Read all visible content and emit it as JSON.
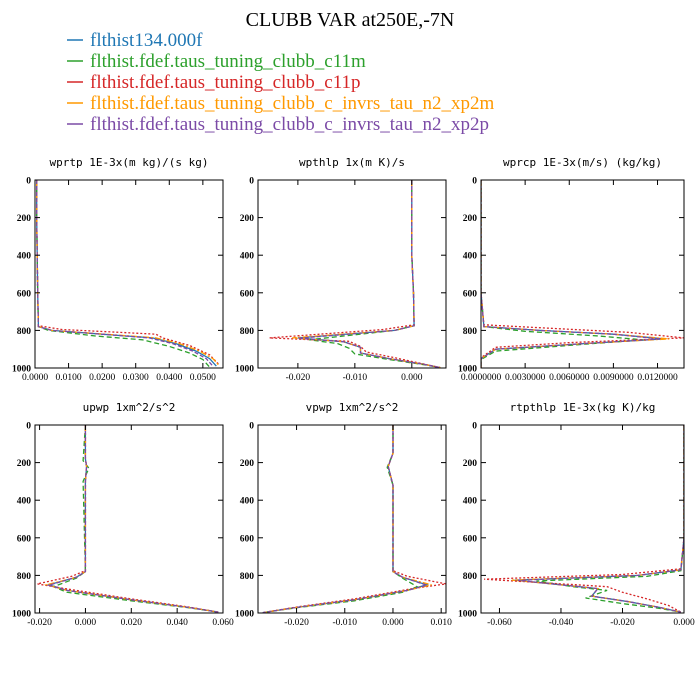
{
  "figure": {
    "title": "CLUBB VAR at250E,-7N"
  },
  "legend": [
    {
      "name": "flthist134.000f",
      "color": "#1f77b4"
    },
    {
      "name": "flthist.fdef.taus_tuning_clubb_c11m",
      "color": "#2ca02c"
    },
    {
      "name": "flthist.fdef.taus_tuning_clubb_c11p",
      "color": "#d62728"
    },
    {
      "name": "flthist.fdef.taus_tuning_clubb_c_invrs_tau_n2_xp2m",
      "color": "#ff9900"
    },
    {
      "name": "flthist.fdef.taus_tuning_clubb_c_invrs_tau_n2_xp2p",
      "color": "#7b4aa6"
    }
  ],
  "chart_data": [
    {
      "type": "line",
      "title": "wprtp  1E-3x(m kg)/(s kg)",
      "xlim": [
        0,
        0.056
      ],
      "ylim": [
        0,
        1000
      ],
      "y_inverted": true,
      "xticks": [
        0,
        0.01,
        0.02,
        0.03,
        0.04,
        0.05
      ],
      "xtick_labels": [
        "0.0000",
        "0.0100",
        "0.0200",
        "0.0300",
        "0.0400",
        "0.0500"
      ],
      "yticks": [
        0,
        200,
        400,
        600,
        800,
        1000
      ],
      "series": [
        {
          "name": "flthist134.000f",
          "x": [
            0.0005,
            0.0005,
            0.0008,
            0.001,
            0.005,
            0.02,
            0.035,
            0.042,
            0.048,
            0.052,
            0.054
          ],
          "y": [
            0,
            200,
            600,
            780,
            800,
            820,
            840,
            870,
            910,
            950,
            990
          ]
        },
        {
          "name": "flthist.fdef.taus_tuning_clubb_c11m",
          "x": [
            0.0005,
            0.0005,
            0.0008,
            0.001,
            0.004,
            0.018,
            0.032,
            0.04,
            0.046,
            0.05,
            0.052
          ],
          "y": [
            0,
            200,
            600,
            780,
            800,
            830,
            850,
            885,
            920,
            955,
            995
          ]
        },
        {
          "name": "flthist.fdef.taus_tuning_clubb_c11p",
          "x": [
            0.0005,
            0.0005,
            0.0008,
            0.001,
            0.008,
            0.025,
            0.036,
            0.038,
            0.046,
            0.052,
            0.055
          ],
          "y": [
            0,
            200,
            600,
            775,
            795,
            810,
            820,
            840,
            880,
            930,
            985
          ]
        },
        {
          "name": "flthist.fdef.taus_tuning_clubb_c_invrs_tau_n2_xp2m",
          "x": [
            0.0005,
            0.0005,
            0.0008,
            0.001,
            0.005,
            0.021,
            0.036,
            0.043,
            0.049,
            0.053,
            0.055
          ],
          "y": [
            0,
            200,
            600,
            780,
            800,
            820,
            840,
            870,
            910,
            950,
            990
          ]
        },
        {
          "name": "flthist.fdef.taus_tuning_clubb_c_invrs_tau_n2_xp2p",
          "x": [
            0.0005,
            0.0005,
            0.0008,
            0.001,
            0.005,
            0.02,
            0.034,
            0.041,
            0.047,
            0.051,
            0.053
          ],
          "y": [
            0,
            200,
            600,
            780,
            800,
            820,
            840,
            870,
            910,
            950,
            990
          ]
        }
      ]
    },
    {
      "type": "line",
      "title": "wpthlp  1x(m K)/s",
      "xlim": [
        -0.027,
        0.006
      ],
      "ylim": [
        0,
        1000
      ],
      "y_inverted": true,
      "xticks": [
        -0.02,
        -0.01,
        0.0
      ],
      "xtick_labels": [
        "-0.020",
        "-0.010",
        "0.000"
      ],
      "yticks": [
        0,
        200,
        400,
        600,
        800,
        1000
      ],
      "series": [
        {
          "name": "flthist134.000f",
          "x": [
            0.0,
            0.0,
            0.0003,
            0.0004,
            -0.003,
            -0.02,
            -0.012,
            -0.009,
            -0.009,
            -0.004,
            0.002,
            0.005
          ],
          "y": [
            0,
            400,
            600,
            775,
            800,
            840,
            860,
            890,
            920,
            950,
            980,
            998
          ]
        },
        {
          "name": "flthist.fdef.taus_tuning_clubb_c11m",
          "x": [
            0.0,
            0.0,
            0.0003,
            0.0004,
            -0.003,
            -0.018,
            -0.013,
            -0.011,
            -0.01,
            -0.004,
            0.002,
            0.005
          ],
          "y": [
            0,
            400,
            600,
            775,
            800,
            850,
            870,
            895,
            925,
            955,
            982,
            998
          ]
        },
        {
          "name": "flthist.fdef.taus_tuning_clubb_c11p",
          "x": [
            0.0,
            0.0,
            0.0003,
            0.0004,
            -0.005,
            -0.025,
            -0.011,
            -0.009,
            -0.008,
            -0.003,
            0.002,
            0.005
          ],
          "y": [
            0,
            400,
            600,
            770,
            795,
            840,
            858,
            885,
            915,
            945,
            978,
            998
          ]
        },
        {
          "name": "flthist.fdef.taus_tuning_clubb_c_invrs_tau_n2_xp2m",
          "x": [
            0.0,
            0.0,
            0.0003,
            0.0004,
            -0.003,
            -0.021,
            -0.012,
            -0.009,
            -0.009,
            -0.004,
            0.002,
            0.005
          ],
          "y": [
            0,
            400,
            600,
            775,
            800,
            840,
            860,
            890,
            920,
            950,
            980,
            998
          ]
        },
        {
          "name": "flthist.fdef.taus_tuning_clubb_c_invrs_tau_n2_xp2p",
          "x": [
            0.0,
            0.0,
            0.0003,
            0.0004,
            -0.003,
            -0.02,
            -0.012,
            -0.009,
            -0.009,
            -0.004,
            0.002,
            0.005
          ],
          "y": [
            0,
            400,
            600,
            775,
            800,
            842,
            860,
            890,
            920,
            950,
            980,
            998
          ]
        }
      ]
    },
    {
      "type": "line",
      "title": "wprcp  1E-3x(m/s) (kg/kg)",
      "xlim": [
        0,
        0.0138
      ],
      "ylim": [
        0,
        1000
      ],
      "y_inverted": true,
      "xticks": [
        0,
        0.003,
        0.006,
        0.009,
        0.012
      ],
      "xtick_labels": [
        "0.0000000",
        "0.0030000",
        "0.0060000",
        "0.0090000",
        "0.0120000"
      ],
      "yticks": [
        0,
        200,
        400,
        600,
        800,
        1000
      ],
      "series": [
        {
          "name": "flthist134.000f",
          "x": [
            0.0,
            0.0,
            0.0002,
            0.004,
            0.009,
            0.0125,
            0.007,
            0.001,
            0.0,
            0.0
          ],
          "y": [
            0,
            600,
            780,
            800,
            820,
            845,
            870,
            900,
            950,
            1000
          ]
        },
        {
          "name": "flthist.fdef.taus_tuning_clubb_c11m",
          "x": [
            0.0,
            0.0,
            0.0002,
            0.003,
            0.008,
            0.011,
            0.006,
            0.001,
            0.0,
            0.0
          ],
          "y": [
            0,
            600,
            780,
            805,
            830,
            850,
            880,
            910,
            955,
            1000
          ]
        },
        {
          "name": "flthist.fdef.taus_tuning_clubb_c11p",
          "x": [
            0.0,
            0.0,
            0.0002,
            0.005,
            0.01,
            0.0138,
            0.006,
            0.001,
            0.0,
            0.0
          ],
          "y": [
            0,
            600,
            770,
            790,
            810,
            840,
            865,
            890,
            945,
            1000
          ]
        },
        {
          "name": "flthist.fdef.taus_tuning_clubb_c_invrs_tau_n2_xp2m",
          "x": [
            0.0,
            0.0,
            0.0002,
            0.004,
            0.009,
            0.0128,
            0.007,
            0.001,
            0.0,
            0.0
          ],
          "y": [
            0,
            600,
            780,
            800,
            820,
            845,
            870,
            900,
            950,
            1000
          ]
        },
        {
          "name": "flthist.fdef.taus_tuning_clubb_c_invrs_tau_n2_xp2p",
          "x": [
            0.0,
            0.0,
            0.0002,
            0.004,
            0.009,
            0.0122,
            0.007,
            0.001,
            0.0,
            0.0
          ],
          "y": [
            0,
            600,
            780,
            800,
            820,
            846,
            870,
            900,
            950,
            1000
          ]
        }
      ]
    },
    {
      "type": "line",
      "title": "upwp  1xm^2/s^2",
      "xlim": [
        -0.022,
        0.06
      ],
      "ylim": [
        0,
        1000
      ],
      "y_inverted": true,
      "xticks": [
        -0.02,
        0.0,
        0.02,
        0.04,
        0.06
      ],
      "xtick_labels": [
        "-0.020",
        "0.000",
        "0.020",
        "0.040",
        "0.060"
      ],
      "yticks": [
        0,
        200,
        400,
        600,
        800,
        1000
      ],
      "series": [
        {
          "name": "flthist134.000f",
          "x": [
            0.0,
            0.0,
            0.0005,
            0.0,
            0.0,
            -0.004,
            -0.016,
            -0.008,
            0.02,
            0.045,
            0.058
          ],
          "y": [
            0,
            180,
            220,
            300,
            780,
            810,
            850,
            880,
            930,
            970,
            995
          ]
        },
        {
          "name": "flthist.fdef.taus_tuning_clubb_c11m",
          "x": [
            0.0,
            -0.001,
            0.0015,
            -0.001,
            0.0,
            -0.004,
            -0.014,
            -0.008,
            0.02,
            0.045,
            0.058
          ],
          "y": [
            0,
            190,
            230,
            300,
            780,
            815,
            860,
            890,
            935,
            972,
            995
          ]
        },
        {
          "name": "flthist.fdef.taus_tuning_clubb_c11p",
          "x": [
            0.0,
            0.0,
            0.0005,
            0.0,
            0.0,
            -0.006,
            -0.021,
            -0.009,
            0.02,
            0.045,
            0.058
          ],
          "y": [
            0,
            180,
            220,
            300,
            775,
            805,
            845,
            870,
            925,
            968,
            995
          ]
        },
        {
          "name": "flthist.fdef.taus_tuning_clubb_c_invrs_tau_n2_xp2m",
          "x": [
            0.0,
            0.0,
            0.0005,
            0.0,
            0.0,
            -0.004,
            -0.017,
            -0.008,
            0.02,
            0.045,
            0.058
          ],
          "y": [
            0,
            180,
            220,
            300,
            780,
            810,
            850,
            880,
            930,
            970,
            995
          ]
        },
        {
          "name": "flthist.fdef.taus_tuning_clubb_c_invrs_tau_n2_xp2p",
          "x": [
            0.0,
            0.0,
            0.0005,
            0.0,
            0.0,
            -0.004,
            -0.016,
            -0.008,
            0.02,
            0.045,
            0.058
          ],
          "y": [
            0,
            180,
            220,
            300,
            780,
            810,
            852,
            880,
            930,
            970,
            995
          ]
        }
      ]
    },
    {
      "type": "line",
      "title": "vpwp  1xm^2/s^2",
      "xlim": [
        -0.028,
        0.011
      ],
      "ylim": [
        0,
        1000
      ],
      "y_inverted": true,
      "xticks": [
        -0.02,
        -0.01,
        0.0,
        0.01
      ],
      "xtick_labels": [
        "-0.020",
        "-0.010",
        "0.000",
        "0.010"
      ],
      "yticks": [
        0,
        200,
        400,
        600,
        800,
        1000
      ],
      "series": [
        {
          "name": "flthist134.000f",
          "x": [
            0.0,
            0.0,
            -0.001,
            0.0,
            0.0,
            0.002,
            0.007,
            0.003,
            -0.008,
            -0.02,
            -0.027
          ],
          "y": [
            0,
            150,
            220,
            320,
            780,
            810,
            850,
            880,
            930,
            970,
            998
          ]
        },
        {
          "name": "flthist.fdef.taus_tuning_clubb_c11m",
          "x": [
            0.0,
            0.0,
            -0.0012,
            0.0,
            0.0,
            0.002,
            0.005,
            0.002,
            -0.008,
            -0.02,
            -0.027
          ],
          "y": [
            0,
            150,
            225,
            320,
            780,
            815,
            860,
            890,
            935,
            972,
            998
          ]
        },
        {
          "name": "flthist.fdef.taus_tuning_clubb_c11p",
          "x": [
            0.0,
            0.0,
            -0.001,
            0.0,
            0.0,
            0.003,
            0.011,
            0.004,
            -0.008,
            -0.02,
            -0.027
          ],
          "y": [
            0,
            150,
            220,
            320,
            775,
            805,
            845,
            870,
            925,
            968,
            998
          ]
        },
        {
          "name": "flthist.fdef.taus_tuning_clubb_c_invrs_tau_n2_xp2m",
          "x": [
            0.0,
            0.0,
            -0.001,
            0.0,
            0.0,
            0.002,
            0.008,
            0.003,
            -0.008,
            -0.02,
            -0.027
          ],
          "y": [
            0,
            150,
            220,
            320,
            780,
            810,
            850,
            880,
            930,
            970,
            998
          ]
        },
        {
          "name": "flthist.fdef.taus_tuning_clubb_c_invrs_tau_n2_xp2p",
          "x": [
            0.0,
            0.0,
            -0.001,
            0.0,
            0.0,
            0.002,
            0.007,
            0.003,
            -0.008,
            -0.02,
            -0.027
          ],
          "y": [
            0,
            150,
            220,
            320,
            780,
            810,
            852,
            880,
            930,
            970,
            998
          ]
        }
      ]
    },
    {
      "type": "line",
      "title": "rtpthlp  1E-3x(kg K)/kg",
      "xlim": [
        -0.066,
        0.0
      ],
      "ylim": [
        0,
        1000
      ],
      "y_inverted": true,
      "xticks": [
        -0.06,
        -0.04,
        -0.02,
        0.0
      ],
      "xtick_labels": [
        "-0.060",
        "-0.040",
        "-0.020",
        "0.000"
      ],
      "yticks": [
        0,
        200,
        400,
        600,
        800,
        1000
      ],
      "series": [
        {
          "name": "flthist134.000f",
          "x": [
            0.0,
            0.0,
            -0.001,
            -0.015,
            -0.055,
            -0.04,
            -0.028,
            -0.03,
            -0.018,
            -0.008,
            -0.001
          ],
          "y": [
            0,
            600,
            770,
            800,
            825,
            850,
            870,
            910,
            940,
            970,
            995
          ]
        },
        {
          "name": "flthist.fdef.taus_tuning_clubb_c11m",
          "x": [
            0.0,
            0.0,
            -0.001,
            -0.012,
            -0.048,
            -0.036,
            -0.025,
            -0.032,
            -0.02,
            -0.008,
            -0.001
          ],
          "y": [
            0,
            600,
            775,
            805,
            830,
            860,
            880,
            920,
            950,
            975,
            995
          ]
        },
        {
          "name": "flthist.fdef.taus_tuning_clubb_c11p",
          "x": [
            0.0,
            0.0,
            -0.001,
            -0.02,
            -0.065,
            -0.045,
            -0.025,
            -0.02,
            -0.012,
            -0.005,
            -0.001
          ],
          "y": [
            0,
            600,
            765,
            795,
            820,
            840,
            860,
            890,
            925,
            960,
            995
          ]
        },
        {
          "name": "flthist.fdef.taus_tuning_clubb_c_invrs_tau_n2_xp2m",
          "x": [
            0.0,
            0.0,
            -0.001,
            -0.015,
            -0.056,
            -0.04,
            -0.028,
            -0.03,
            -0.018,
            -0.008,
            -0.001
          ],
          "y": [
            0,
            600,
            770,
            800,
            825,
            850,
            870,
            910,
            940,
            970,
            995
          ]
        },
        {
          "name": "flthist.fdef.taus_tuning_clubb_c_invrs_tau_n2_xp2p",
          "x": [
            0.0,
            0.0,
            -0.001,
            -0.015,
            -0.054,
            -0.04,
            -0.028,
            -0.03,
            -0.018,
            -0.008,
            -0.001
          ],
          "y": [
            0,
            600,
            770,
            800,
            826,
            850,
            870,
            910,
            940,
            970,
            995
          ]
        }
      ]
    }
  ]
}
